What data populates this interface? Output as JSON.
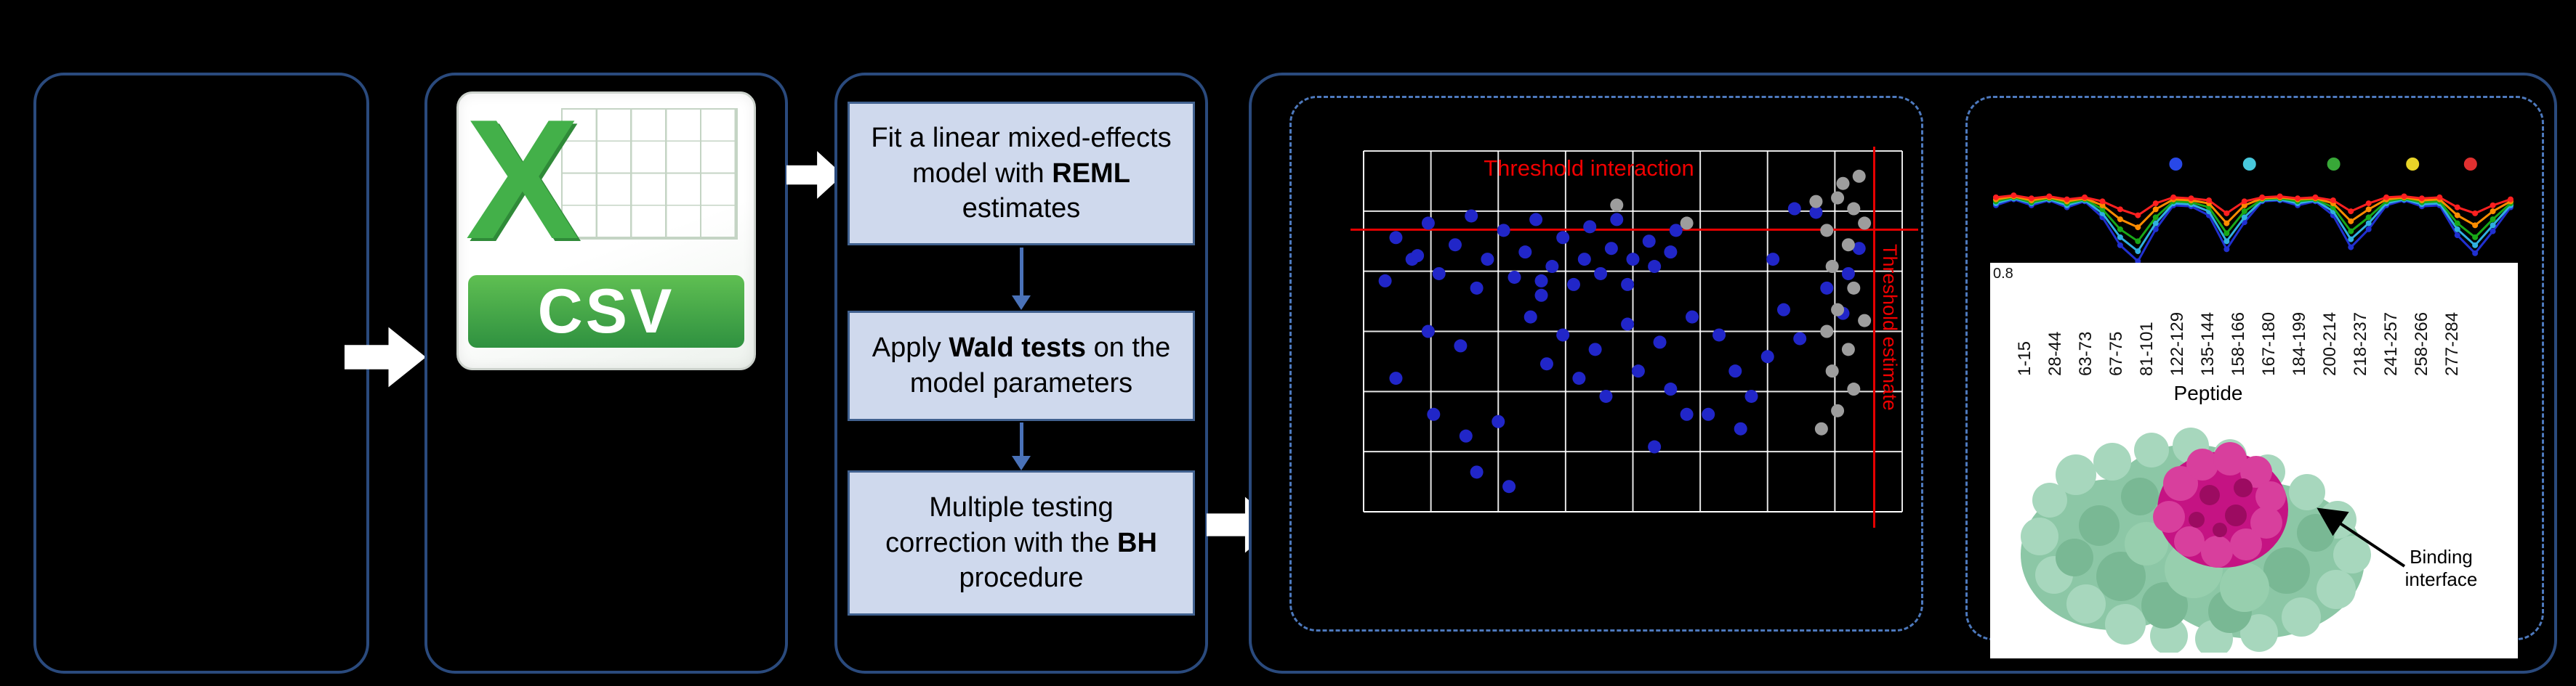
{
  "figure": {
    "csv_label": "CSV",
    "workflow_steps": [
      {
        "pre": "Fit a linear mixed-effects model with ",
        "bold": "REML",
        "post": " estimates"
      },
      {
        "pre": "Apply ",
        "bold": "Wald tests",
        "post": " on the model parameters"
      },
      {
        "pre": "Multiple testing correction with the ",
        "bold": "BH",
        "post": " procedure"
      }
    ],
    "volcano": {
      "threshold_interaction": "Threshold interaction",
      "threshold_estimate": "Threshold estimate"
    },
    "uptake": {
      "ytick": "0.8",
      "xlabel": "Peptide"
    },
    "structure_annotation": "Binding interface"
  },
  "chart_data": [
    {
      "type": "scatter",
      "title": "interaction effect scatter with significance thresholds",
      "grid": {
        "cols": 8,
        "rows": 6
      },
      "thresholds": {
        "horizontal_pct_from_top": 21.8,
        "vertical_pct_from_left": 94.8
      },
      "series": [
        {
          "name": "significant-points",
          "color": "#2126c8",
          "points_pct": [
            [
              6,
              24
            ],
            [
              9,
              30
            ],
            [
              12,
              20
            ],
            [
              14,
              34
            ],
            [
              17,
              26
            ],
            [
              20,
              18
            ],
            [
              21,
              38
            ],
            [
              23,
              30
            ],
            [
              26,
              22
            ],
            [
              28,
              35
            ],
            [
              30,
              28
            ],
            [
              32,
              19
            ],
            [
              33,
              40
            ],
            [
              35,
              32
            ],
            [
              37,
              24
            ],
            [
              39,
              37
            ],
            [
              41,
              30
            ],
            [
              42,
              21
            ],
            [
              44,
              34
            ],
            [
              46,
              27
            ],
            [
              47,
              19
            ],
            [
              49,
              37
            ],
            [
              50,
              30
            ],
            [
              53,
              25
            ],
            [
              54,
              32
            ],
            [
              57,
              28
            ],
            [
              58,
              22
            ],
            [
              31,
              46
            ],
            [
              37,
              51
            ],
            [
              43,
              55
            ],
            [
              49,
              48
            ],
            [
              55,
              53
            ],
            [
              61,
              46
            ],
            [
              66,
              51
            ],
            [
              51,
              61
            ],
            [
              57,
              66
            ],
            [
              45,
              68
            ],
            [
              40,
              63
            ],
            [
              34,
              59
            ],
            [
              69,
              61
            ],
            [
              75,
              57
            ],
            [
              81,
              52
            ],
            [
              13,
              73
            ],
            [
              19,
              79
            ],
            [
              25,
              75
            ],
            [
              64,
              73
            ],
            [
              70,
              77
            ],
            [
              21,
              89
            ],
            [
              27,
              93
            ],
            [
              54,
              82
            ],
            [
              10,
              29
            ],
            [
              4,
              36
            ],
            [
              86,
              38
            ],
            [
              90,
              34
            ],
            [
              92,
              27
            ],
            [
              12,
              50
            ],
            [
              18,
              54
            ],
            [
              6,
              63
            ],
            [
              89,
              45
            ],
            [
              60,
              73
            ],
            [
              72,
              68
            ],
            [
              33,
              36
            ],
            [
              84,
              17
            ],
            [
              80,
              16
            ],
            [
              76,
              30
            ],
            [
              78,
              44
            ]
          ]
        },
        {
          "name": "non-significant-points",
          "color": "#9d9d9d",
          "points_pct": [
            [
              84,
              14
            ],
            [
              88,
              13
            ],
            [
              91,
              16
            ],
            [
              86,
              22
            ],
            [
              90,
              26
            ],
            [
              87,
              32
            ],
            [
              91,
              38
            ],
            [
              88,
              44
            ],
            [
              86,
              50
            ],
            [
              90,
              55
            ],
            [
              87,
              61
            ],
            [
              91,
              66
            ],
            [
              88,
              72
            ],
            [
              85,
              77
            ],
            [
              93,
              20
            ],
            [
              93,
              47
            ],
            [
              60,
              20
            ],
            [
              47,
              15
            ],
            [
              89,
              9
            ],
            [
              92,
              7
            ]
          ]
        }
      ]
    },
    {
      "type": "line",
      "title": "per-peptide uptake difference traces",
      "xlabel": "Peptide",
      "y_tick": "0.8",
      "x_labels": [
        "1-15",
        "28-44",
        "63-73",
        "67-75",
        "81-101",
        "122-129",
        "135-144",
        "158-166",
        "167-180",
        "184-199",
        "200-214",
        "218-237",
        "241-257",
        "258-266",
        "277-284"
      ],
      "marker_dots": [
        {
          "color": "#2848e8",
          "x_pct": 35
        },
        {
          "color": "#48c8dc",
          "x_pct": 49
        },
        {
          "color": "#38a838",
          "x_pct": 65
        },
        {
          "color": "#e8d428",
          "x_pct": 80
        },
        {
          "color": "#e03030",
          "x_pct": 91
        }
      ],
      "series": [
        {
          "name": "trace-blue",
          "color": "#2030d0",
          "values_pct": [
            38,
            32,
            38,
            33,
            40,
            34,
            50,
            78,
            94,
            62,
            38,
            39,
            48,
            82,
            55,
            34,
            33,
            38,
            34,
            48,
            80,
            62,
            38,
            33,
            39,
            38,
            68,
            86,
            64,
            40
          ]
        },
        {
          "name": "trace-cyan",
          "color": "#30b0e0",
          "values_pct": [
            36,
            31,
            36,
            32,
            38,
            33,
            46,
            70,
            84,
            56,
            36,
            37,
            44,
            74,
            50,
            33,
            32,
            36,
            33,
            44,
            72,
            56,
            36,
            32,
            37,
            36,
            62,
            78,
            58,
            38
          ]
        },
        {
          "name": "trace-green",
          "color": "#18a818",
          "values_pct": [
            34,
            30,
            35,
            31,
            36,
            32,
            42,
            62,
            74,
            50,
            34,
            35,
            40,
            66,
            44,
            32,
            31,
            34,
            32,
            40,
            64,
            50,
            34,
            31,
            35,
            34,
            56,
            70,
            52,
            36
          ]
        },
        {
          "name": "trace-orange",
          "color": "#ff8c00",
          "values_pct": [
            32,
            29,
            33,
            30,
            34,
            31,
            38,
            52,
            60,
            42,
            32,
            33,
            36,
            56,
            38,
            31,
            30,
            32,
            31,
            36,
            54,
            42,
            32,
            30,
            33,
            32,
            48,
            58,
            44,
            34
          ]
        },
        {
          "name": "trace-red",
          "color": "#ff2020",
          "values_pct": [
            30,
            28,
            31,
            29,
            32,
            30,
            34,
            42,
            48,
            36,
            30,
            31,
            33,
            46,
            34,
            30,
            29,
            31,
            30,
            33,
            44,
            36,
            30,
            29,
            31,
            30,
            40,
            46,
            38,
            32
          ]
        }
      ]
    }
  ]
}
